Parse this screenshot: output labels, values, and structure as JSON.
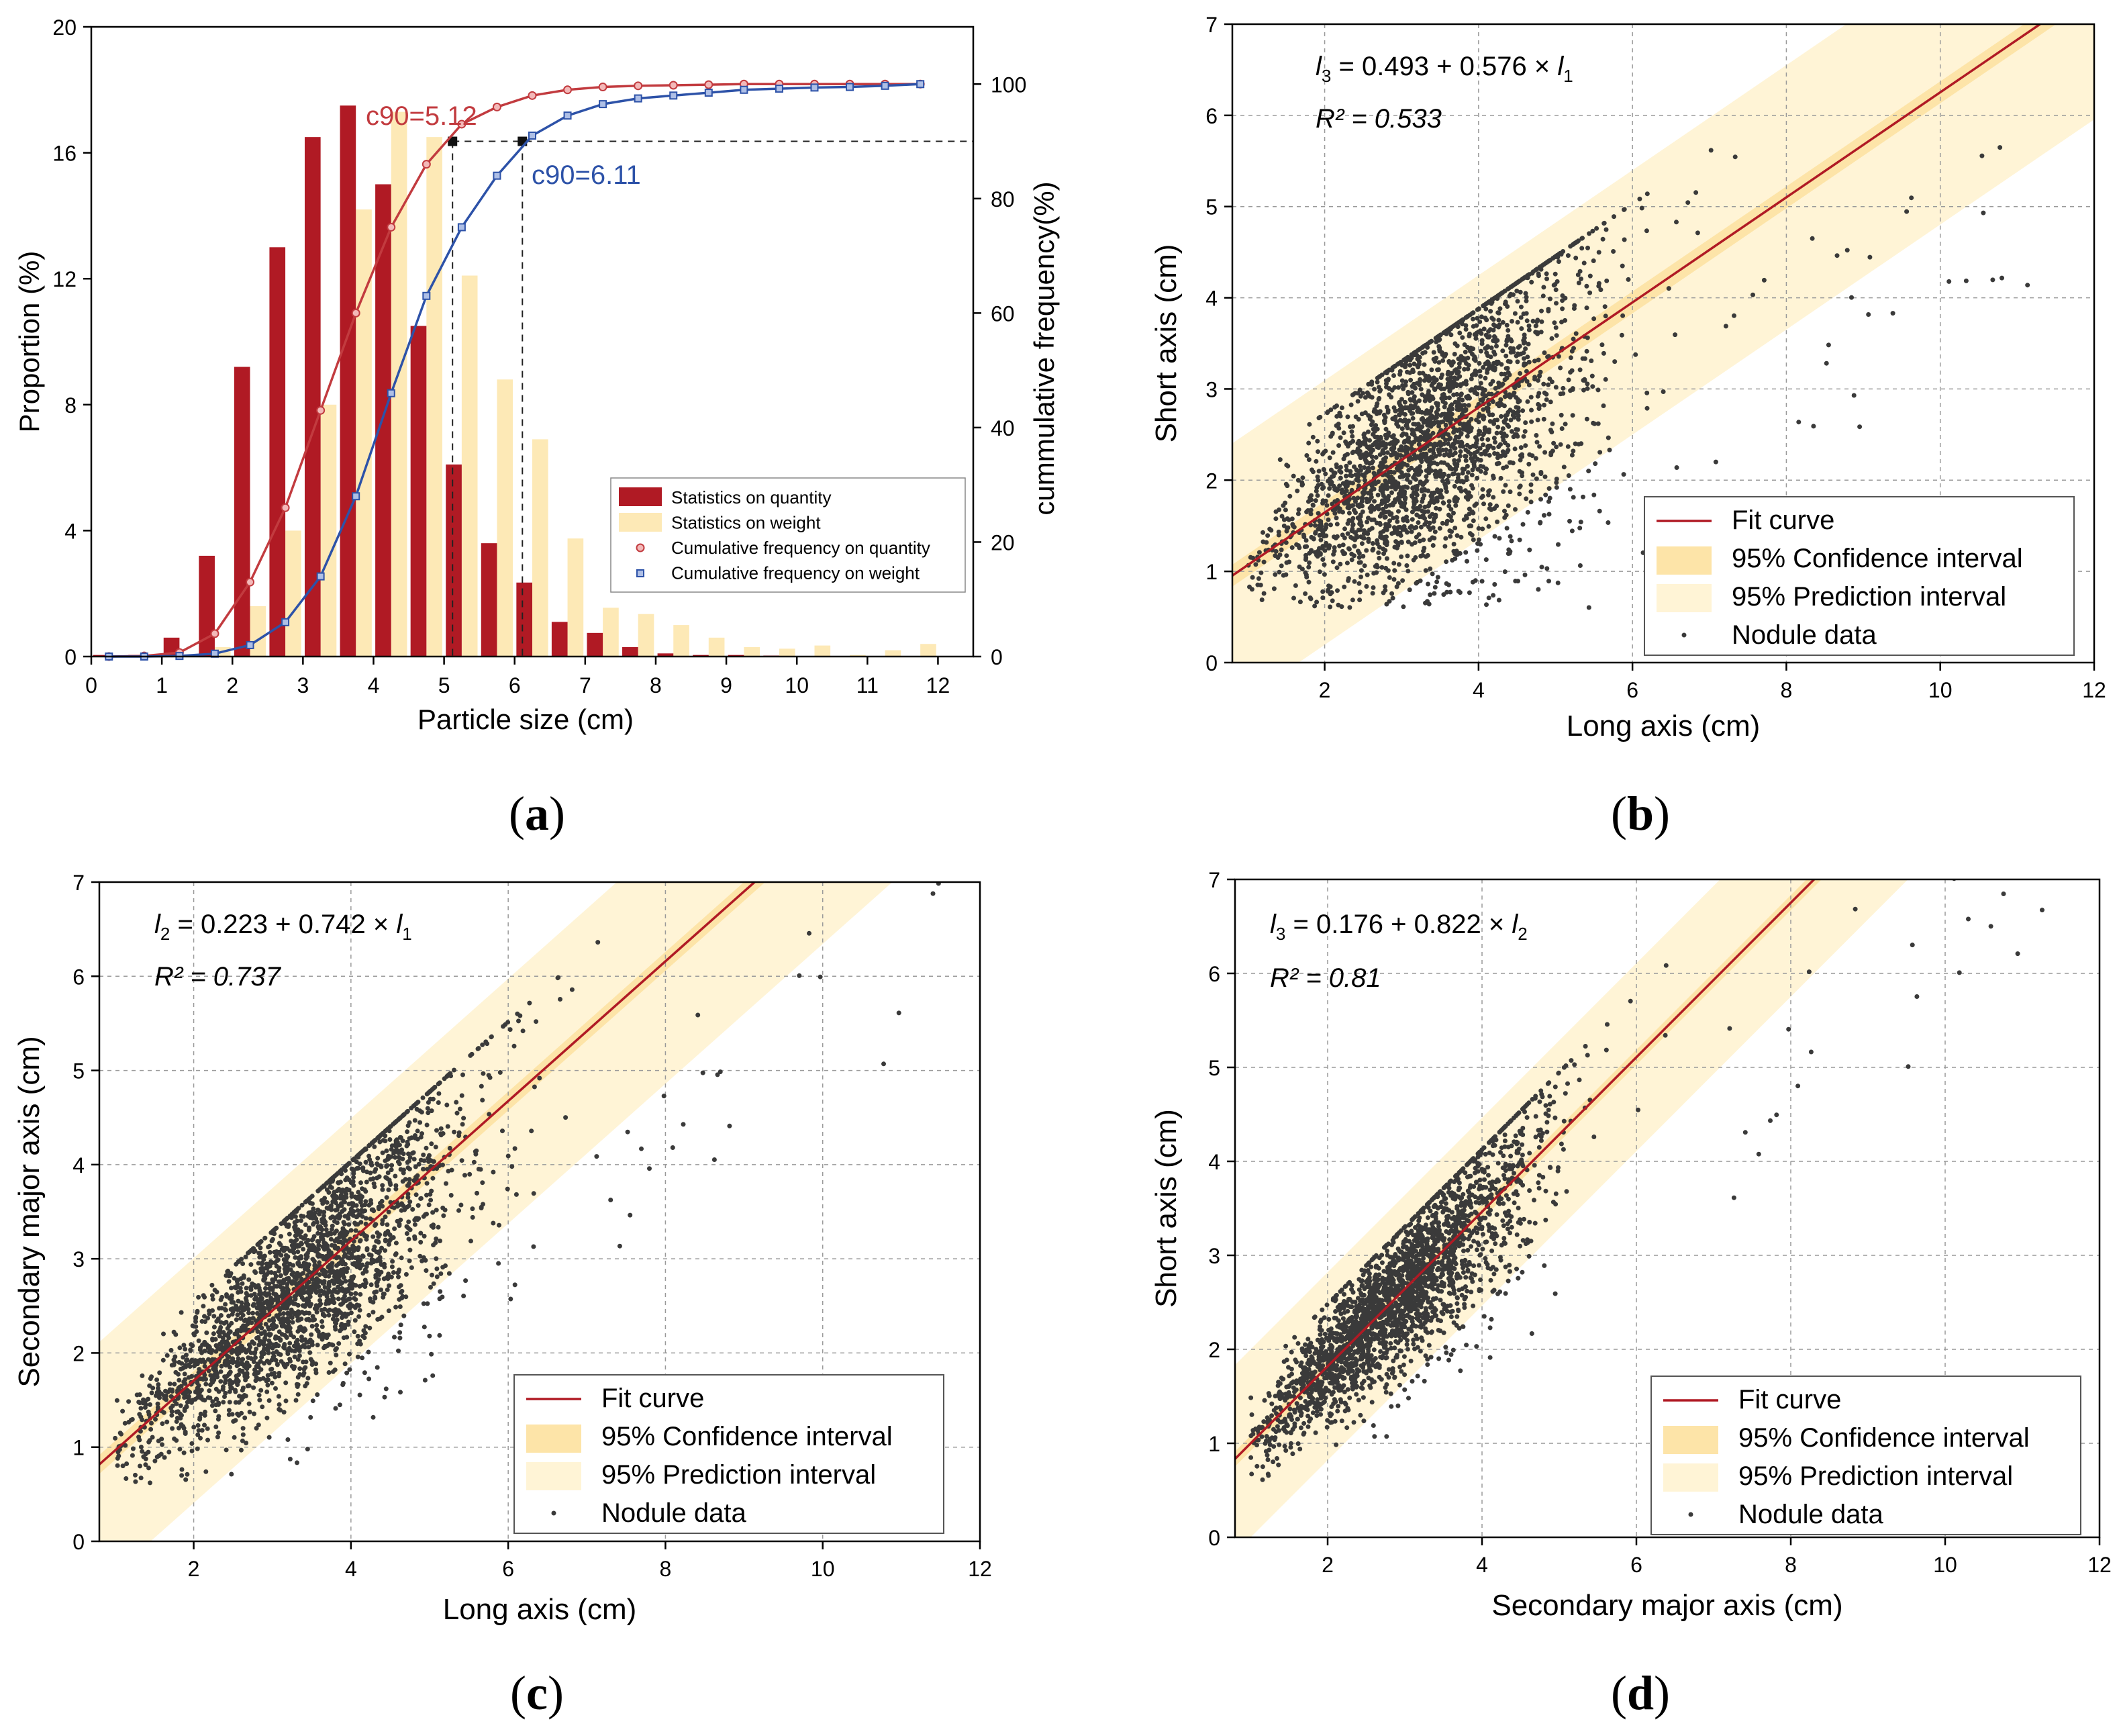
{
  "colors": {
    "quantity": "#b01a24",
    "weight": "#fde9b6",
    "cum_quantity": "#c23b3f",
    "cum_weight": "#2d52a8",
    "fit": "#b01a24",
    "confidence": "#fde4a8",
    "prediction": "#fff4d6",
    "points": "#3a3a3a"
  },
  "chart_data": [
    {
      "type": "bar",
      "panel_label": "(a)",
      "label_letter": "a",
      "xlabel": "Particle size (cm)",
      "ylabel": "Proportion (%)",
      "y2label": "cummulative frequency(%)",
      "xlim": [
        0,
        12.5
      ],
      "ylim": [
        0,
        20
      ],
      "y2lim": [
        0,
        110
      ],
      "xticks": [
        "0",
        "1",
        "2",
        "3",
        "4",
        "5",
        "6",
        "7",
        "8",
        "9",
        "10",
        "11",
        "12"
      ],
      "yticks": [
        "0",
        "4",
        "8",
        "12",
        "16",
        "20"
      ],
      "y2ticks": [
        "0",
        "20",
        "40",
        "60",
        "80",
        "100"
      ],
      "categories": [
        0.25,
        0.75,
        1.25,
        1.75,
        2.25,
        2.75,
        3.25,
        3.75,
        4.25,
        4.75,
        5.25,
        5.75,
        6.25,
        6.75,
        7.25,
        7.75,
        8.25,
        8.75,
        9.25,
        9.75,
        10.25,
        10.75,
        11.25,
        11.75
      ],
      "series": [
        {
          "name": "Statistics on quantity",
          "values": [
            0.05,
            0.05,
            0.6,
            3.2,
            9.2,
            13.0,
            16.5,
            17.5,
            15.0,
            10.5,
            6.1,
            3.6,
            2.35,
            1.1,
            0.75,
            0.3,
            0.1,
            0.05,
            0.05,
            0.03,
            0.02,
            0.02,
            0.02,
            0.02
          ]
        },
        {
          "name": "Statistics on weight",
          "values": [
            0,
            0,
            0.02,
            0.3,
            1.6,
            4.0,
            8.0,
            14.2,
            17.3,
            16.5,
            12.1,
            8.8,
            6.9,
            3.75,
            1.55,
            1.35,
            1.0,
            0.6,
            0.3,
            0.25,
            0.35,
            0.05,
            0.2,
            0.4
          ]
        }
      ],
      "cumulative": [
        {
          "name": "Cumulative frequency on quantity",
          "x": [
            0.25,
            0.75,
            1.25,
            1.75,
            2.25,
            2.75,
            3.25,
            3.75,
            4.25,
            4.75,
            5.25,
            5.75,
            6.25,
            6.75,
            7.25,
            7.75,
            8.25,
            8.75,
            9.25,
            9.75,
            10.25,
            10.75,
            11.25,
            11.75
          ],
          "values": [
            0,
            0.1,
            0.7,
            4,
            13,
            26,
            43,
            60,
            75,
            86,
            93,
            96,
            98,
            99,
            99.5,
            99.7,
            99.8,
            99.9,
            100,
            100,
            100,
            100,
            100,
            100
          ]
        },
        {
          "name": "Cumulative frequency on weight",
          "x": [
            0.25,
            0.75,
            1.25,
            1.75,
            2.25,
            2.75,
            3.25,
            3.75,
            4.25,
            4.75,
            5.25,
            5.75,
            6.25,
            6.75,
            7.25,
            7.75,
            8.25,
            8.75,
            9.25,
            9.75,
            10.25,
            10.75,
            11.25,
            11.75
          ],
          "values": [
            0,
            0,
            0.1,
            0.5,
            2,
            6,
            14,
            28,
            46,
            63,
            75,
            84,
            91,
            94.5,
            96.5,
            97.5,
            98,
            98.5,
            99,
            99.2,
            99.4,
            99.5,
            99.7,
            100
          ]
        }
      ],
      "annotations": [
        {
          "text": "c90=5.12",
          "x": 5.12,
          "y": 90
        },
        {
          "text": "c90=6.11",
          "x": 6.11,
          "y": 90
        }
      ],
      "legend": "bottom-right"
    },
    {
      "type": "scatter",
      "panel_label": "(b)",
      "label_letter": "b",
      "xlabel": "Long axis (cm)",
      "ylabel": "Short axis (cm)",
      "xlim": [
        0.8,
        12
      ],
      "ylim": [
        0,
        7
      ],
      "xticks": [
        "2",
        "4",
        "6",
        "8",
        "10",
        "12"
      ],
      "yticks": [
        "0",
        "1",
        "2",
        "3",
        "4",
        "5",
        "6",
        "7"
      ],
      "fit": {
        "intercept": 0.493,
        "slope": 0.576,
        "ci_half": 0.12,
        "pi_half": 1.45
      },
      "equation": {
        "lhs_var": "l",
        "lhs_sub": "3",
        "text": " = 0.493 + 0.576 × ",
        "rhs_var": "l",
        "rhs_sub": "1"
      },
      "r2": "R² = 0.533",
      "cloud": {
        "xmin": 1.0,
        "xmax": 7.4,
        "spread": 0.9,
        "mean_x": 3.4,
        "sd_x": 1.05,
        "n": 2600,
        "seed": 11
      },
      "legend": [
        "Fit curve",
        "95% Confidence interval",
        "95% Prediction interval",
        "Nodule data"
      ]
    },
    {
      "type": "scatter",
      "panel_label": "(c)",
      "label_letter": "c",
      "xlabel": "Long axis (cm)",
      "ylabel": "Secondary major axis (cm)",
      "xlim": [
        0.8,
        12
      ],
      "ylim": [
        0,
        7
      ],
      "xticks": [
        "2",
        "4",
        "6",
        "8",
        "10",
        "12"
      ],
      "yticks": [
        "0",
        "1",
        "2",
        "3",
        "4",
        "5",
        "6",
        "7"
      ],
      "fit": {
        "intercept": 0.223,
        "slope": 0.742,
        "ci_half": 0.1,
        "pi_half": 1.3
      },
      "equation": {
        "lhs_var": "l",
        "lhs_sub": "2",
        "text": " = 0.223 + 0.742 × ",
        "rhs_var": "l",
        "rhs_sub": "1"
      },
      "r2": "R² = 0.737",
      "cloud": {
        "xmin": 1.0,
        "xmax": 7.6,
        "spread": 0.7,
        "mean_x": 3.4,
        "sd_x": 1.05,
        "n": 2600,
        "seed": 23
      },
      "legend": [
        "Fit curve",
        "95% Confidence interval",
        "95% Prediction interval",
        "Nodule data"
      ]
    },
    {
      "type": "scatter",
      "panel_label": "(d)",
      "label_letter": "d",
      "xlabel": "Secondary major axis (cm)",
      "ylabel": "Short axis (cm)",
      "xlim": [
        0.8,
        12
      ],
      "ylim": [
        0,
        7
      ],
      "xticks": [
        "2",
        "4",
        "6",
        "8",
        "10",
        "12"
      ],
      "yticks": [
        "0",
        "1",
        "2",
        "3",
        "4",
        "5",
        "6",
        "7"
      ],
      "fit": {
        "intercept": 0.176,
        "slope": 0.822,
        "ci_half": 0.08,
        "pi_half": 1.0
      },
      "equation": {
        "lhs_var": "l",
        "lhs_sub": "3",
        "text": " = 0.176 + 0.822 × ",
        "rhs_var": "l",
        "rhs_sub": "2"
      },
      "r2": "R² = 0.81",
      "cloud": {
        "xmin": 1.0,
        "xmax": 6.6,
        "spread": 0.55,
        "mean_x": 2.9,
        "sd_x": 0.9,
        "n": 2600,
        "seed": 37
      },
      "legend": [
        "Fit curve",
        "95% Confidence interval",
        "95% Prediction interval",
        "Nodule data"
      ]
    }
  ]
}
